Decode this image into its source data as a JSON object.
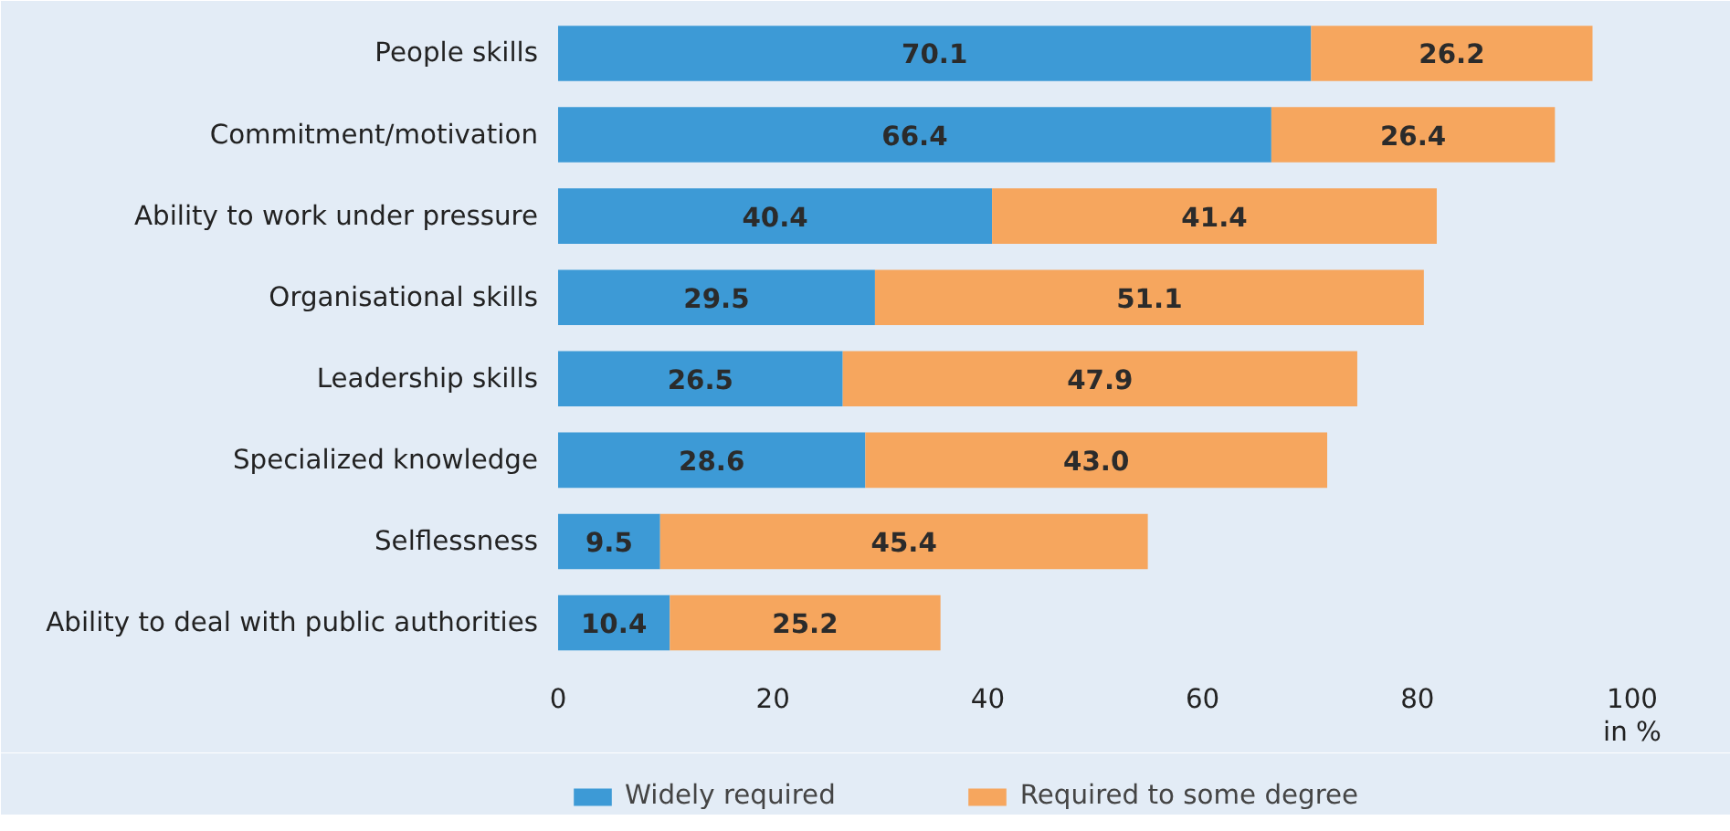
{
  "chart_data": {
    "type": "bar",
    "orientation": "horizontal",
    "stacked": true,
    "data_labels": true,
    "legend": "bottom",
    "grid": false,
    "categories": [
      "People skills",
      "Commitment/motivation",
      "Ability to work under pressure",
      "Organisational skills",
      "Leadership skills",
      "Specialized knowledge",
      "Selflessness",
      "Ability to deal with public authorities"
    ],
    "series": [
      {
        "name": "Widely required",
        "color": "#3d9ad6",
        "values": [
          70.1,
          66.4,
          40.4,
          29.5,
          26.5,
          28.6,
          9.5,
          10.4
        ]
      },
      {
        "name": "Required to some degree",
        "color": "#f6a65e",
        "values": [
          26.2,
          26.4,
          41.4,
          51.1,
          47.9,
          43.0,
          45.4,
          25.2
        ],
        "value_labels": [
          "26.2",
          "26.4",
          "41.4",
          "51.1",
          "47.9",
          "43.0",
          "45.4",
          "25.2"
        ]
      }
    ],
    "xlim": [
      0,
      100
    ],
    "xticks": [
      0,
      20,
      40,
      60,
      80,
      100
    ],
    "xlabel": "in %"
  }
}
